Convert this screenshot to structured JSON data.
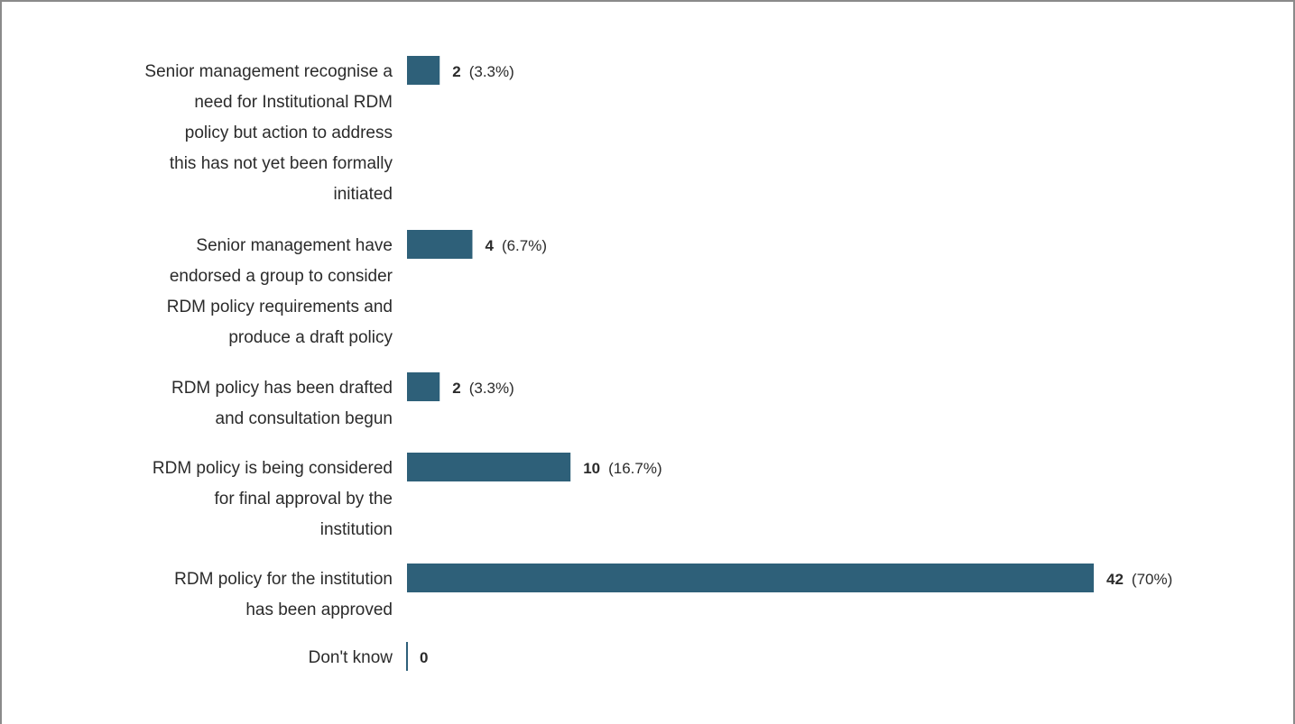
{
  "chart_data": {
    "type": "bar",
    "orientation": "horizontal",
    "title": "",
    "xlabel": "",
    "ylabel": "",
    "categories": [
      "Senior management recognise a need for Institutional RDM policy but action to address this has not yet been formally initiated",
      "Senior management have endorsed a group to consider RDM policy requirements and produce a draft policy",
      "RDM policy has been drafted and consultation begun",
      "RDM policy is being considered for final approval by the institution",
      "RDM policy for the institution has been approved",
      "Don't know"
    ],
    "category_lines": [
      [
        "Senior management recognise a",
        "need for Institutional RDM",
        "policy but action to address",
        "this has not yet been formally",
        "initiated"
      ],
      [
        "Senior management have",
        "endorsed a group to consider",
        "RDM policy requirements and",
        "produce a draft policy"
      ],
      [
        "RDM policy has been drafted",
        "and consultation begun"
      ],
      [
        "RDM policy is being considered",
        "for final approval by the",
        "institution"
      ],
      [
        "RDM policy for the institution",
        "has been approved"
      ],
      [
        "Don't know"
      ]
    ],
    "values": [
      2,
      4,
      2,
      10,
      42,
      0
    ],
    "percent_labels": [
      "(3.3%)",
      "(6.7%)",
      "(3.3%)",
      "(16.7%)",
      "(70%)",
      ""
    ],
    "xlim": [
      0,
      42
    ],
    "grid": false,
    "legend": "none",
    "bar_color": "#2e6079"
  }
}
